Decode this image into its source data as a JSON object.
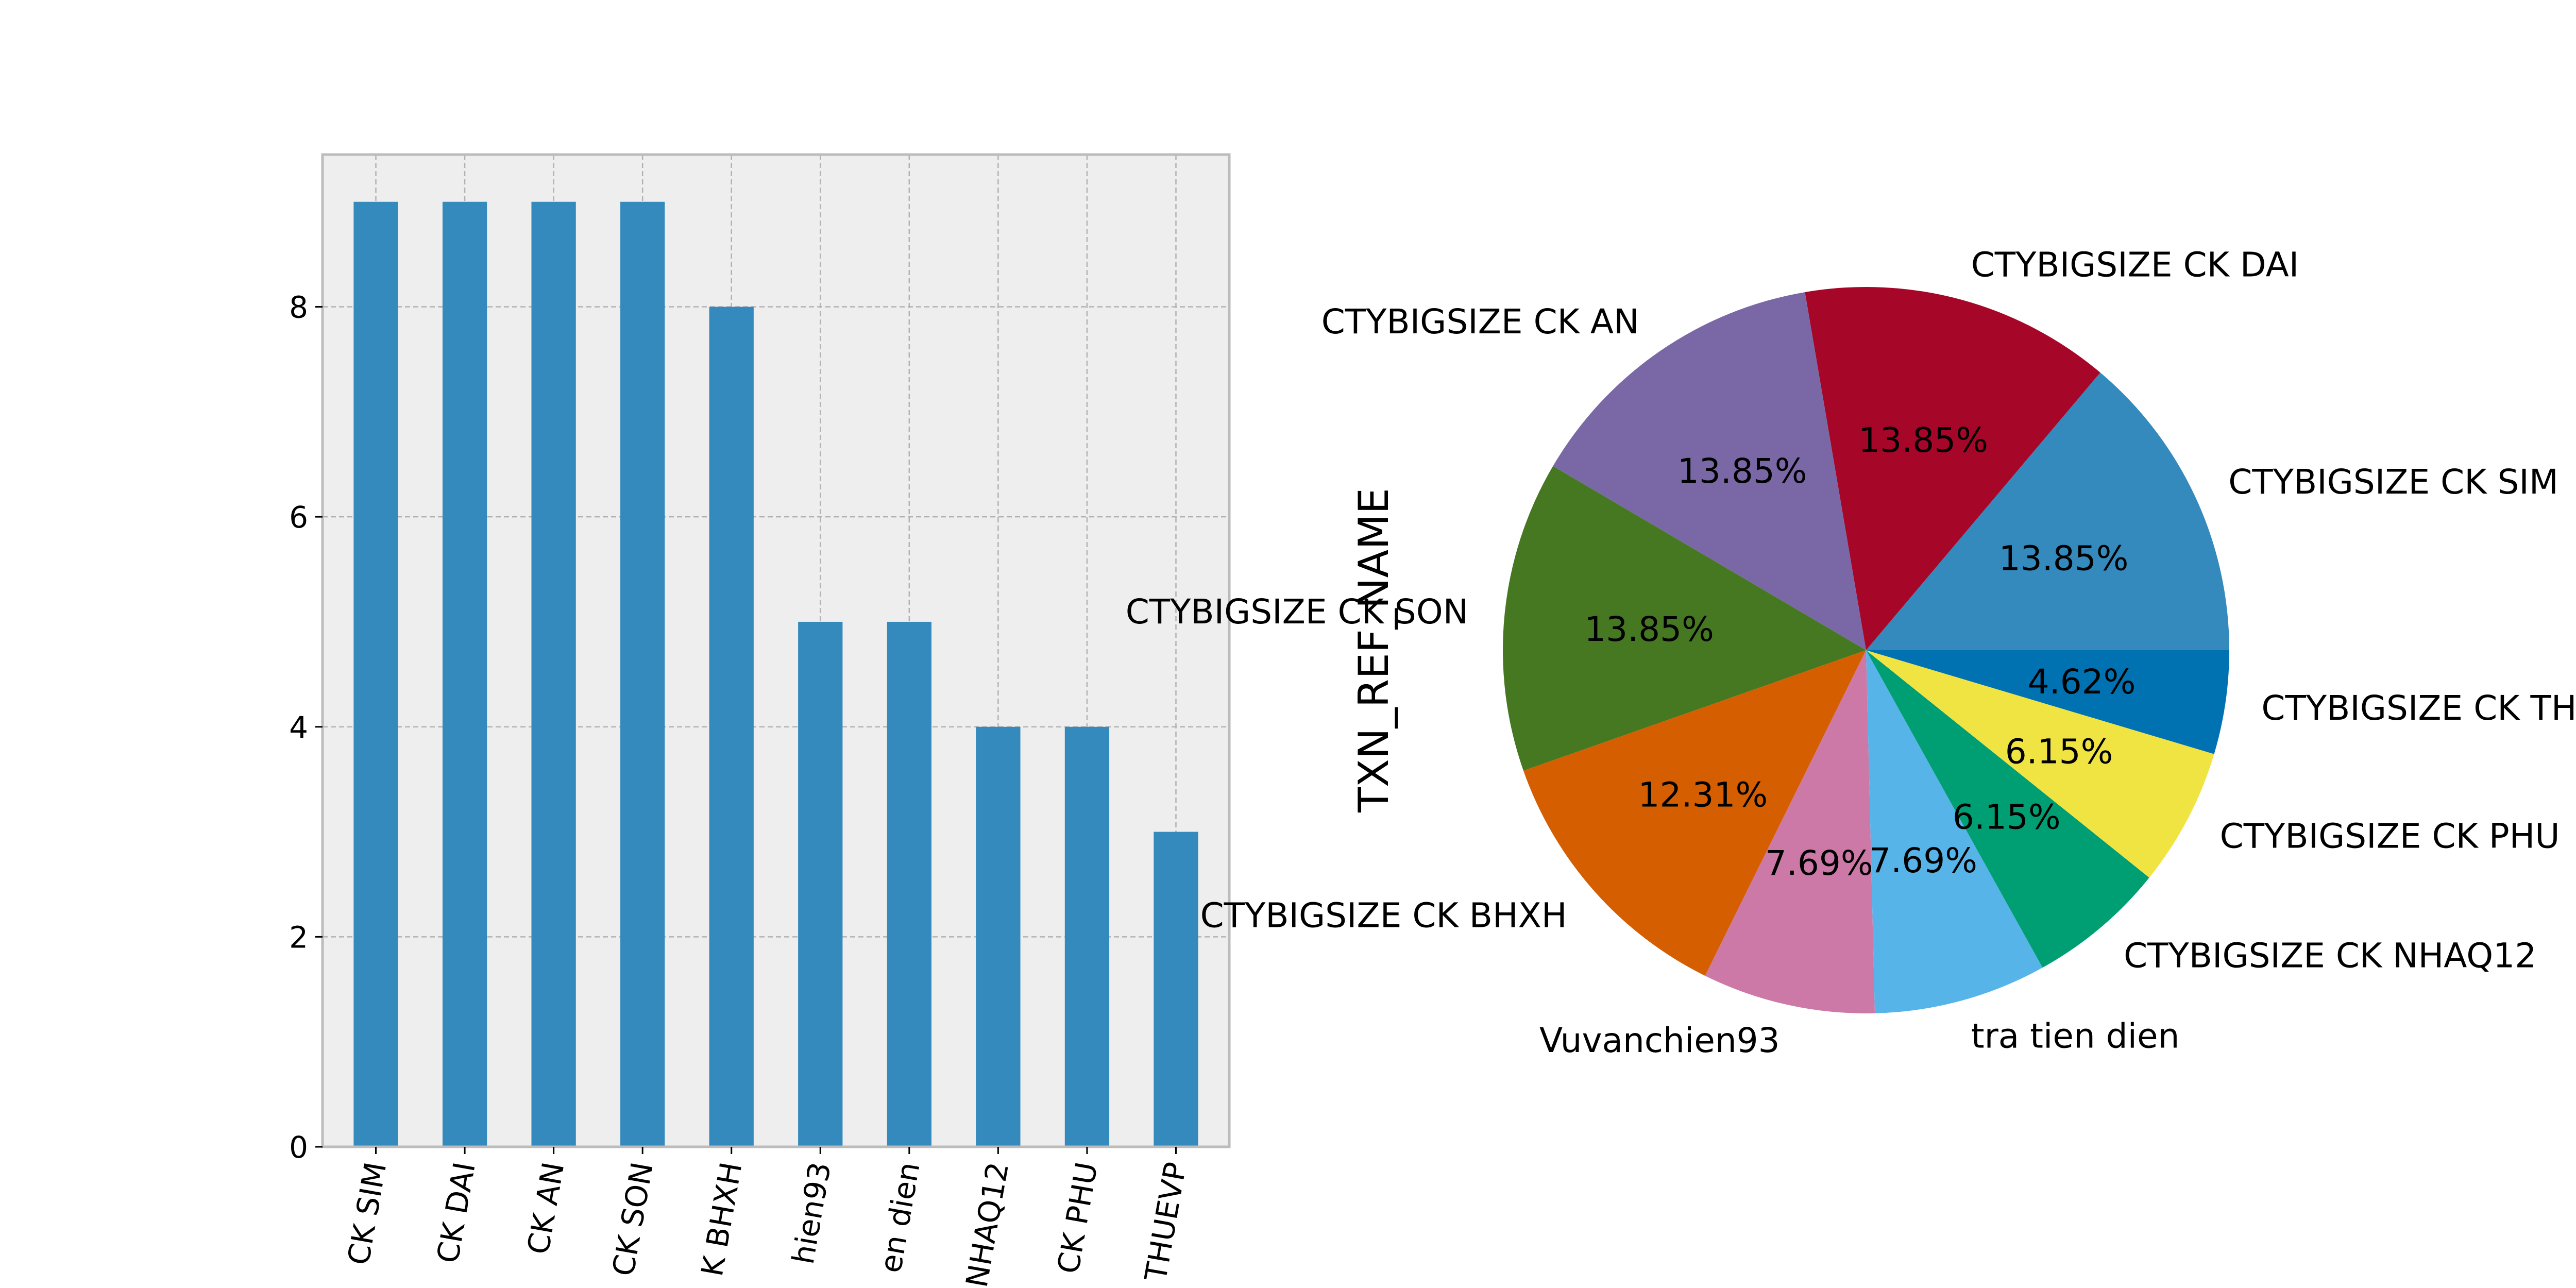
{
  "chart_data": [
    {
      "type": "bar",
      "categories": [
        "CK SIM",
        "CK DAI",
        "CK AN",
        "CK SON",
        "K BHXH",
        "hien93",
        "en dien",
        "NHAQ12",
        "CK PHU",
        "THUEVP"
      ],
      "values": [
        9,
        9,
        9,
        9,
        8,
        5,
        5,
        4,
        4,
        3
      ],
      "yticks": [
        "0",
        "2",
        "4",
        "6",
        "8"
      ],
      "ylim": [
        0,
        9.45
      ],
      "grid": true,
      "colors": {
        "bar": "#348abd",
        "background": "#eeeeee",
        "frame": "#bcbcbc",
        "grid": "#b2b2b2"
      }
    },
    {
      "type": "pie",
      "ylabel": "TXN_REF_NAME",
      "slices": [
        {
          "label": "CTYBIGSIZE CK SIM",
          "value": 9,
          "pct_label": "13.85%",
          "color": "#348abd"
        },
        {
          "label": "CTYBIGSIZE CK DAI",
          "value": 9,
          "pct_label": "13.85%",
          "color": "#a60628"
        },
        {
          "label": "CTYBIGSIZE CK AN",
          "value": 9,
          "pct_label": "13.85%",
          "color": "#7a68a6"
        },
        {
          "label": "CTYBIGSIZE CK SON",
          "value": 9,
          "pct_label": "13.85%",
          "color": "#467821"
        },
        {
          "label": "CTYBIGSIZE CK BHXH",
          "value": 8,
          "pct_label": "12.31%",
          "color": "#d55e00"
        },
        {
          "label": "Vuvanchien93",
          "value": 5,
          "pct_label": "7.69%",
          "color": "#cc79a7"
        },
        {
          "label": "tra tien dien",
          "value": 5,
          "pct_label": "7.69%",
          "color": "#56b4e9"
        },
        {
          "label": "CTYBIGSIZE CK NHAQ12",
          "value": 4,
          "pct_label": "6.15%",
          "color": "#009e73"
        },
        {
          "label": "CTYBIGSIZE CK PHU",
          "value": 4,
          "pct_label": "6.15%",
          "color": "#f0e442"
        },
        {
          "label": "CTYBIGSIZE CK THUEVP",
          "value": 3,
          "pct_label": "4.62%",
          "color": "#0072b2"
        }
      ],
      "start_angle_deg": 0,
      "direction": "counterclockwise"
    }
  ]
}
